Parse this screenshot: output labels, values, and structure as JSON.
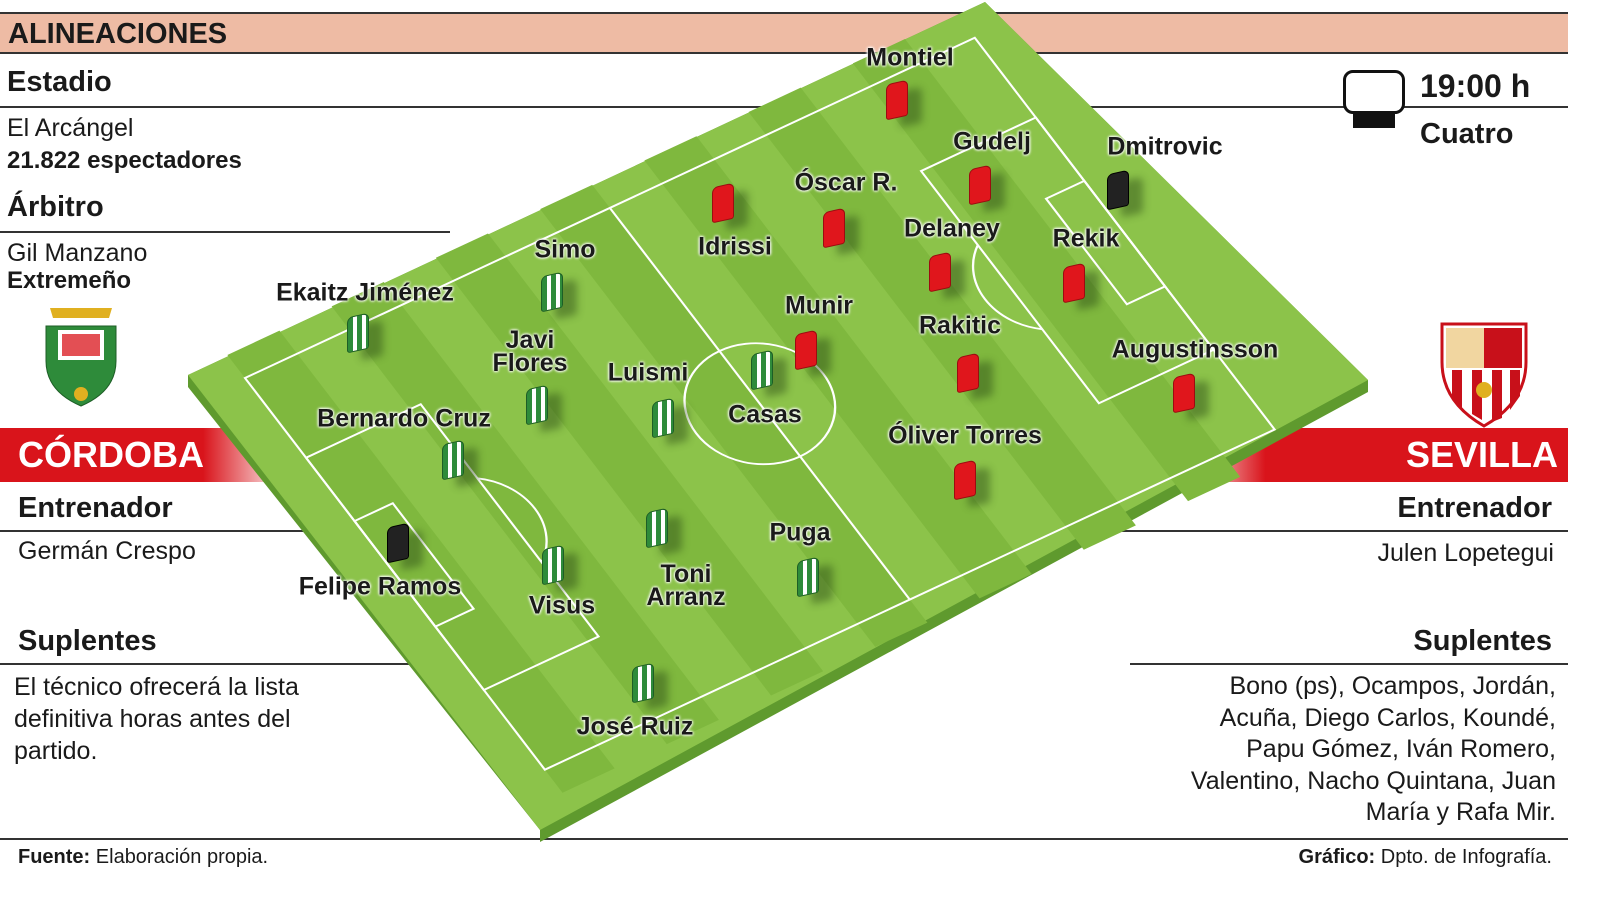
{
  "title": "ALINEACIONES",
  "match": {
    "time": "19:00 h",
    "channel": "Cuatro",
    "tv_icon": "tv-icon"
  },
  "stadium": {
    "label": "Estadio",
    "name": "El Arcángel",
    "attendance": "21.822 espectadores"
  },
  "referee": {
    "label": "Árbitro",
    "name": "Gil Manzano",
    "region": "Extremeño"
  },
  "home": {
    "name": "CÓRDOBA",
    "coach_label": "Entrenador",
    "coach": "Germán Crespo",
    "subs_label": "Suplentes",
    "subs": "El técnico ofrecerá la lista definitiva horas antes del partido.",
    "color": "#2e8b3a",
    "players": [
      "Ekaitz Jiménez",
      "Simo",
      "Javi Flores",
      "Luismi",
      "Casas",
      "Bernardo Cruz",
      "Felipe Ramos",
      "Visus",
      "Toni Arranz",
      "Puga",
      "José Ruiz"
    ]
  },
  "away": {
    "name": "SEVILLA",
    "coach_label": "Entrenador",
    "coach": "Julen Lopetegui",
    "subs_label": "Suplentes",
    "subs": "Bono (ps), Ocampos, Jordán, Acuña, Diego Carlos, Koundé, Papu Gómez, Iván Romero, Valentino, Nacho Quintana, Juan María y Rafa Mir.",
    "color": "#e0161c",
    "players": [
      "Montiel",
      "Gudelj",
      "Dmitrovic",
      "Óscar R.",
      "Idrissi",
      "Delaney",
      "Rekik",
      "Munir",
      "Rakitic",
      "Augustinsson",
      "Óliver Torres"
    ]
  },
  "footer": {
    "source_label": "Fuente:",
    "source": "Elaboración propia.",
    "graphic_label": "Gráfico:",
    "graphic": "Dpto. de Infografía."
  },
  "colors": {
    "header": "#eebba4",
    "band_red": "#d9141b",
    "pitch": "#8cc34a"
  }
}
